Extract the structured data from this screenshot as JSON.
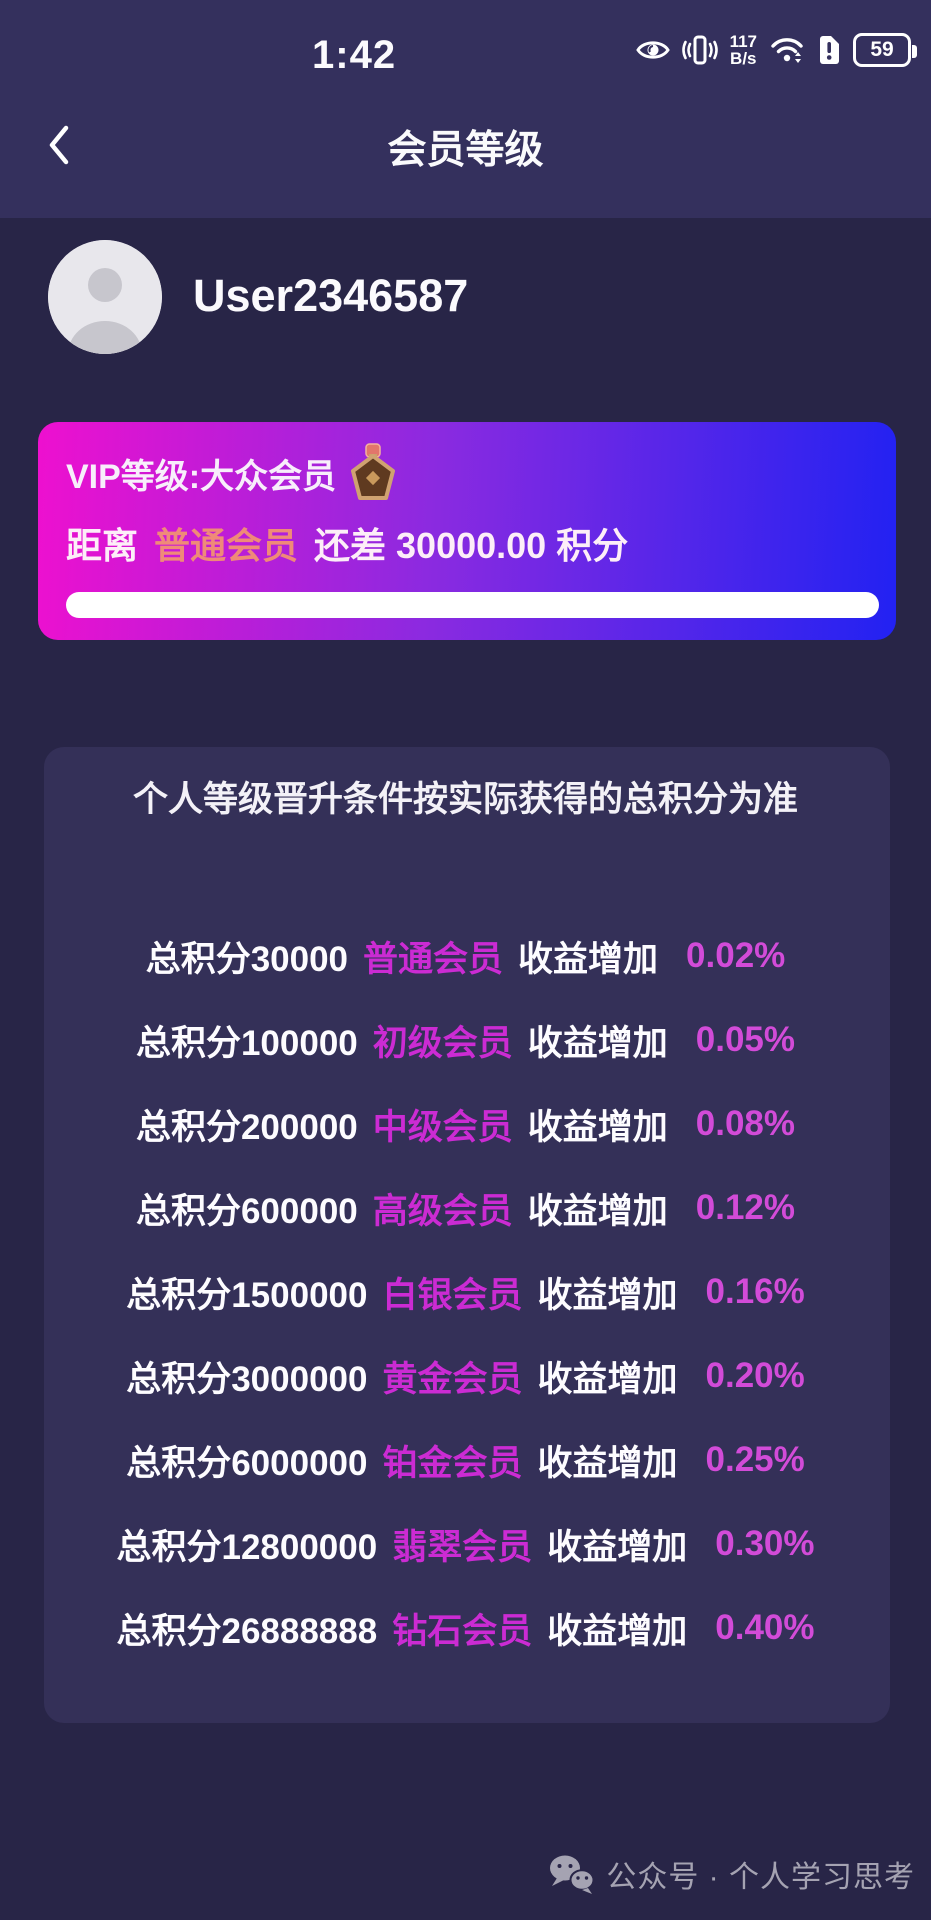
{
  "status_bar": {
    "time": "1:42",
    "net_speed": "117",
    "net_unit": "B/s",
    "battery": "59",
    "icons": [
      "eye-protection-icon",
      "vibrate-icon",
      "wifi-icon",
      "sim-alert-icon",
      "battery-indicator"
    ]
  },
  "header": {
    "title": "会员等级",
    "back_icon": "chevron-left"
  },
  "user": {
    "name": "User2346587"
  },
  "vip_card": {
    "level_label": "VIP等级:大众会员",
    "badge_icon": "bronze-medal",
    "distance_prefix": "距离",
    "next_level": "普通会员",
    "distance_suffix": "还差 30000.00 积分",
    "progress_percent": 0,
    "colors": {
      "gradient_left": "#ee10cf",
      "gradient_right": "#2222f2",
      "next_level_text": "#ef8a78",
      "progress_track": "#ffffff"
    }
  },
  "levels_panel": {
    "title": "个人等级晋升条件按实际获得的总积分为准",
    "gain_label": "收益增加",
    "colors": {
      "level_name": "#cb2bd3",
      "percent": "#d24bd8",
      "panel_bg": "#343058"
    },
    "rows": [
      {
        "points": "总积分30000",
        "level": "普通会员",
        "percent": "0.02%"
      },
      {
        "points": "总积分100000",
        "level": "初级会员",
        "percent": "0.05%"
      },
      {
        "points": "总积分200000",
        "level": "中级会员",
        "percent": "0.08%"
      },
      {
        "points": "总积分600000",
        "level": "高级会员",
        "percent": "0.12%"
      },
      {
        "points": "总积分1500000",
        "level": "白银会员",
        "percent": "0.16%"
      },
      {
        "points": "总积分3000000",
        "level": "黄金会员",
        "percent": "0.20%"
      },
      {
        "points": "总积分6000000",
        "level": "铂金会员",
        "percent": "0.25%"
      },
      {
        "points": "总积分12800000",
        "level": "翡翠会员",
        "percent": "0.30%"
      },
      {
        "points": "总积分26888888",
        "level": "钻石会员",
        "percent": "0.40%"
      }
    ]
  },
  "watermark": {
    "icon": "wechat-logo",
    "text": "公众号 · 个人学习思考"
  }
}
